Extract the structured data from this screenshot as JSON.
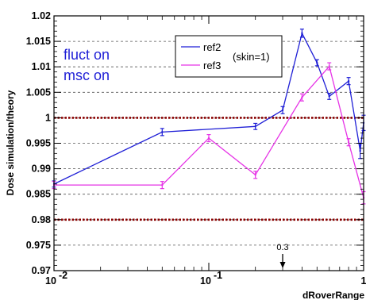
{
  "chart_data": {
    "type": "line",
    "xlabel": "dRoverRange",
    "ylabel": "Dose simulation/theory",
    "xscale": "log",
    "xlim": [
      0.01,
      1
    ],
    "ylim": [
      0.97,
      1.02
    ],
    "xticks": [
      {
        "value": 0.01,
        "base": "10",
        "exp": "-2"
      },
      {
        "value": 0.1,
        "base": "10",
        "exp": "-1"
      },
      {
        "value": 1,
        "base": "1",
        "exp": ""
      }
    ],
    "yticks": [
      "0.97",
      "0.975",
      "0.98",
      "0.985",
      "0.99",
      "0.995",
      "1",
      "1.005",
      "1.01",
      "1.015",
      "1.02"
    ],
    "grid": "horizontal dashed",
    "reference_lines": [
      1.0,
      0.98
    ],
    "legend_position": "top-right",
    "legend_note": "(skin=1)",
    "annotations": [
      "fluct on",
      "msc on"
    ],
    "marker": {
      "x": 0.3,
      "label": "0.3"
    },
    "colors": {
      "ref2": "#1f1fd6",
      "ref3": "#e633e6",
      "reference": "#8b0000"
    },
    "series": [
      {
        "name": "ref2",
        "color": "#1f1fd6",
        "x": [
          0.01,
          0.05,
          0.2,
          0.3,
          0.4,
          0.5,
          0.6,
          0.8,
          0.95,
          1.0
        ],
        "y": [
          0.987,
          0.9972,
          0.9983,
          1.0015,
          1.0166,
          1.0108,
          1.0042,
          1.0072,
          0.9935,
          0.999
        ],
        "err": [
          0.0006,
          0.0007,
          0.0006,
          0.0007,
          0.0008,
          0.0006,
          0.0006,
          0.0007,
          0.0015,
          0.0015
        ]
      },
      {
        "name": "ref3",
        "color": "#e633e6",
        "x": [
          0.01,
          0.05,
          0.1,
          0.2,
          0.4,
          0.6,
          0.8,
          1.0
        ],
        "y": [
          0.9868,
          0.9868,
          0.996,
          0.9888,
          1.004,
          1.0101,
          0.9952,
          0.9843
        ],
        "err": [
          0.0007,
          0.0007,
          0.0007,
          0.0007,
          0.0007,
          0.0007,
          0.0007,
          0.0012
        ]
      }
    ]
  }
}
